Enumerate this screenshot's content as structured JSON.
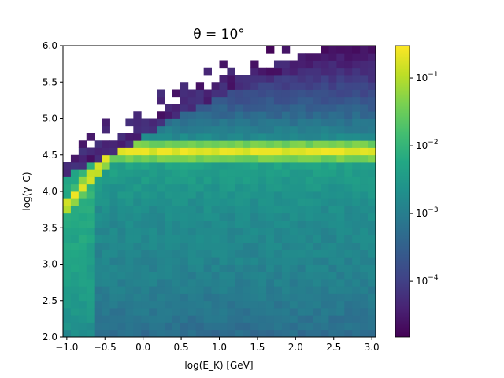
{
  "chart_data": {
    "type": "heatmap",
    "title": "θ = 10°",
    "xlabel": "log(E_K) [GeV]",
    "ylabel": "log(γ_C)",
    "xlim": [
      -1.05,
      3.05
    ],
    "ylim": [
      2.0,
      6.0
    ],
    "x_ticks": [
      "−1.0",
      "−0.5",
      "0.0",
      "0.5",
      "1.0",
      "1.5",
      "2.0",
      "2.5",
      "3.0"
    ],
    "y_ticks": [
      "2.0",
      "2.5",
      "3.0",
      "3.5",
      "4.0",
      "4.5",
      "5.0",
      "5.5",
      "6.0"
    ],
    "grid": false,
    "bins": {
      "x": 40,
      "y": 40
    },
    "colormap": "viridis",
    "colorbar": {
      "scale": "log",
      "range": [
        1.5e-05,
        0.3
      ],
      "ticks": [
        {
          "value": 0.0001,
          "base": "10",
          "exp": "−4"
        },
        {
          "value": 0.001,
          "base": "10",
          "exp": "−3"
        },
        {
          "value": 0.01,
          "base": "10",
          "exp": "−2"
        },
        {
          "value": 0.1,
          "base": "10",
          "exp": "−1"
        }
      ]
    },
    "ridge": {
      "description_values": "peak density ~0.2 along log(γ_C)≈4.55 for log(E_K)>-0.4; rising branch from (−1.0, 3.8) to (−0.4, 4.5)",
      "peak_level": 0.2,
      "plateau_y": 4.55
    },
    "upper_edge": [
      [
        -1.0,
        4.35
      ],
      [
        -0.5,
        4.6
      ],
      [
        0.0,
        4.9
      ],
      [
        0.5,
        5.2
      ],
      [
        1.0,
        5.45
      ],
      [
        1.5,
        5.65
      ],
      [
        2.0,
        5.8
      ],
      [
        2.5,
        5.95
      ],
      [
        3.0,
        6.0
      ]
    ]
  }
}
